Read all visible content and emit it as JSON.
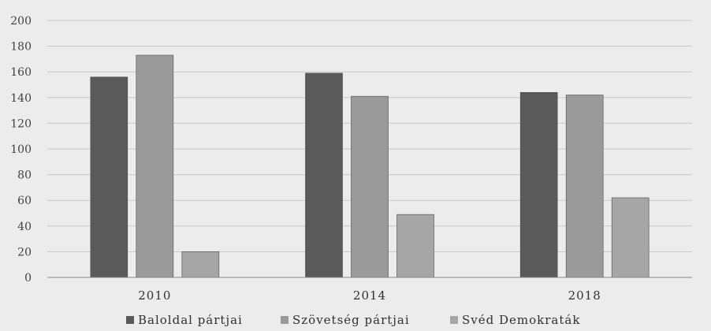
{
  "chart_data": {
    "type": "bar",
    "title": "",
    "xlabel": "",
    "ylabel": "",
    "categories": [
      "2010",
      "2014",
      "2018"
    ],
    "series": [
      {
        "name": "Baloldal pártjai",
        "values": [
          156,
          159,
          144
        ],
        "color": "#5a5a5a"
      },
      {
        "name": "Szövetség pártjai",
        "values": [
          173,
          141,
          142
        ],
        "color": "#9a9a9a"
      },
      {
        "name": "Svéd Demokraták",
        "values": [
          20,
          49,
          62
        ],
        "color": "#a6a6a6"
      }
    ],
    "ylim": [
      0,
      200
    ],
    "yticks": [
      0,
      20,
      40,
      60,
      80,
      100,
      120,
      140,
      160,
      180,
      200
    ],
    "grid": true,
    "legend_position": "bottom",
    "colors": {
      "background": "#ececec",
      "grid": "#c8c8c8",
      "axis": "#8a8a8a"
    }
  }
}
